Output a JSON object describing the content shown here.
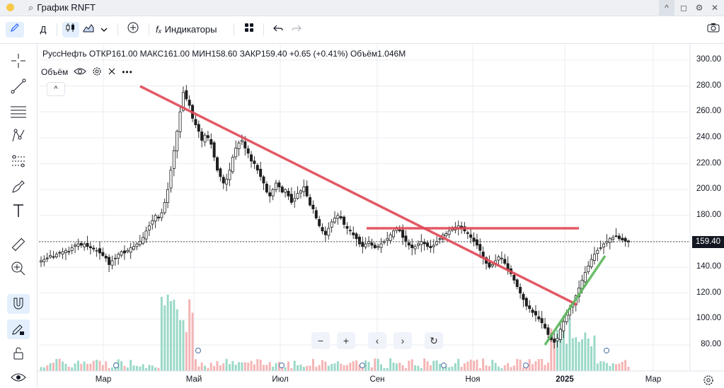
{
  "window": {
    "title": "График RNFT",
    "buttons": [
      "^",
      "◻",
      "⚙",
      "✕"
    ]
  },
  "toolbar": {
    "draw_icon": "pencil-icon",
    "timeframe": "Д",
    "chart_type_icon": "candles-icon",
    "area_icon": "area-chart-icon",
    "add_icon": "plus-circle-icon",
    "indicators_label": "Индикаторы",
    "indicators_icon": "fx-icon",
    "layout_icon": "grid-icon",
    "undo_icon": "undo-icon",
    "redo_icon": "redo-icon",
    "snapshot_icon": "camera-icon"
  },
  "left_tools": [
    "crosshair-icon",
    "trendline-icon",
    "fib-icon",
    "pattern-icon",
    "projection-icon",
    "brush-icon",
    "text-icon",
    "ruler-icon",
    "zoom-in-icon",
    "magnet-icon",
    "lock-pencil-icon",
    "lock-icon",
    "eye-icon"
  ],
  "legend": {
    "symbol": "РуссНефть",
    "open_label": "ОТКР",
    "open": "161.00",
    "high_label": "МАКС",
    "high": "161.00",
    "low_label": "МИН",
    "low": "158.60",
    "close_label": "ЗАКР",
    "close": "159.40",
    "change": "+0.65 (+0.41%)",
    "volume_label": "Объём",
    "volume": "1.046M"
  },
  "volume_indicator": {
    "label": "Объём",
    "collapse": "^"
  },
  "zoom_controls": [
    "−",
    "+",
    "‹",
    "›",
    "↻"
  ],
  "colors": {
    "up": "#26a69a",
    "down": "#ef5350",
    "trendline_red": "#e04856",
    "trendline_green": "#5cb85c",
    "vol_up": "#9bd9c8",
    "vol_down": "#f5b5b5"
  },
  "chart_data": {
    "type": "candlestick",
    "y_ticks": [
      "300.00",
      "280.00",
      "260.00",
      "240.00",
      "220.00",
      "200.00",
      "180.00",
      "160.00",
      "140.00",
      "120.00",
      "100.00",
      "80.00"
    ],
    "ylim": [
      70,
      305
    ],
    "x_ticks": [
      "Мар",
      "Май",
      "Июл",
      "Сен",
      "Ноя",
      "2025",
      "Мар"
    ],
    "current_price": "159.40",
    "close_series": [
      145,
      146,
      147,
      149,
      148,
      150,
      151,
      152,
      153,
      152,
      155,
      157,
      158,
      157,
      158,
      156,
      155,
      154,
      153,
      151,
      149,
      147,
      142,
      145,
      147,
      150,
      152,
      151,
      153,
      155,
      156,
      158,
      160,
      163,
      168,
      172,
      176,
      180,
      178,
      182,
      190,
      200,
      215,
      230,
      245,
      260,
      275,
      270,
      265,
      255,
      250,
      245,
      238,
      242,
      240,
      235,
      225,
      215,
      210,
      205,
      208,
      215,
      225,
      232,
      236,
      238,
      232,
      228,
      222,
      220,
      215,
      210,
      205,
      198,
      195,
      200,
      205,
      202,
      198,
      200,
      195,
      190,
      193,
      197,
      199,
      202,
      195,
      188,
      185,
      178,
      172,
      168,
      165,
      170,
      175,
      178,
      180,
      178,
      173,
      170,
      168,
      165,
      162,
      158,
      156,
      158,
      160,
      157,
      155,
      156,
      158,
      160,
      162,
      165,
      168,
      170,
      168,
      163,
      160,
      157,
      155,
      156,
      158,
      160,
      158,
      156,
      155,
      157,
      160,
      162,
      165,
      166,
      168,
      170,
      171,
      172,
      170,
      168,
      166,
      163,
      160,
      157,
      153,
      148,
      143,
      140,
      142,
      145,
      148,
      147,
      143,
      138,
      135,
      130,
      125,
      120,
      115,
      110,
      108,
      105,
      103,
      100,
      97,
      93,
      88,
      84,
      82,
      85,
      92,
      98,
      103,
      108,
      112,
      118,
      124,
      130,
      136,
      141,
      146,
      150,
      153,
      155,
      158,
      160,
      162,
      163,
      164,
      162,
      161,
      160,
      159.4
    ]
  }
}
